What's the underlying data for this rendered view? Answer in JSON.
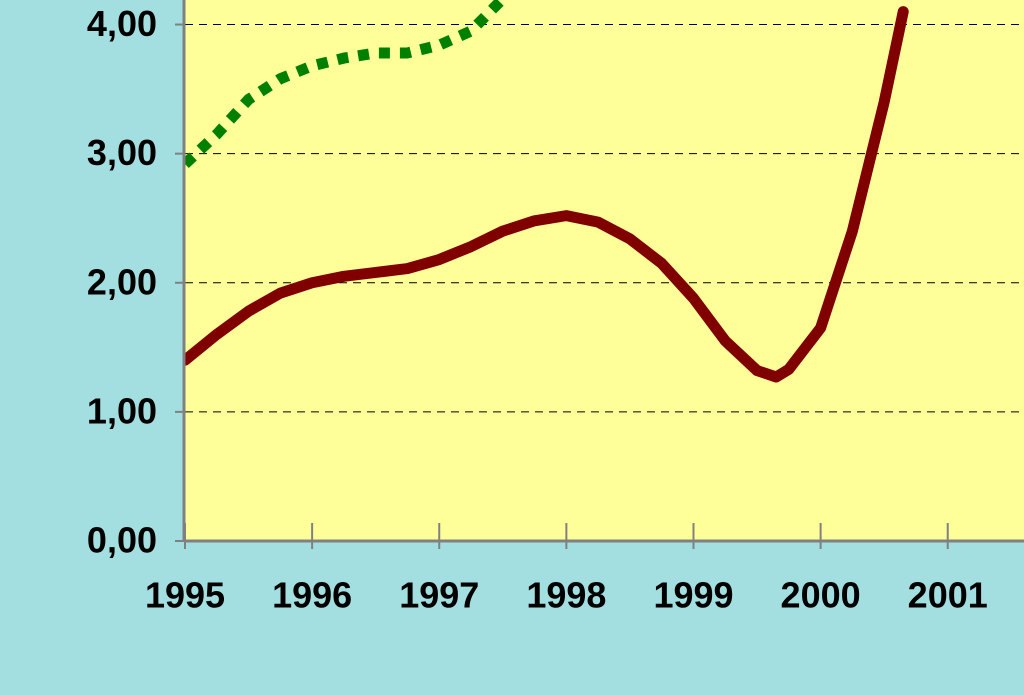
{
  "chart_data": {
    "type": "line",
    "x": [
      1995,
      1995.25,
      1995.5,
      1995.75,
      1996,
      1996.25,
      1996.5,
      1996.75,
      1997,
      1997.25,
      1997.5,
      1997.75,
      1998,
      1998.25,
      1998.5,
      1998.75,
      1999,
      1999.25,
      1999.5,
      1999.65,
      1999.75,
      2000,
      2000.25,
      2000.5,
      2000.65
    ],
    "series": [
      {
        "color": "#800000",
        "style": "solid",
        "values": [
          1.4,
          1.6,
          1.78,
          1.92,
          2.0,
          2.05,
          2.08,
          2.11,
          2.18,
          2.28,
          2.4,
          2.48,
          2.52,
          2.47,
          2.34,
          2.15,
          1.88,
          1.55,
          1.32,
          1.27,
          1.33,
          1.65,
          2.4,
          3.4,
          4.1
        ]
      },
      {
        "color": "#008000",
        "style": "dotted",
        "values": [
          2.92,
          3.15,
          3.42,
          3.58,
          3.68,
          3.74,
          3.78,
          3.78,
          3.84,
          3.95,
          4.2,
          null,
          null,
          null,
          null,
          null,
          null,
          null,
          null,
          null,
          null,
          null,
          null,
          null,
          null
        ]
      }
    ],
    "xlim": [
      1995,
      2001.6
    ],
    "ylim": [
      0,
      4.19
    ],
    "xticks": [
      1995,
      1996,
      1997,
      1998,
      1999,
      2000,
      2001
    ],
    "yticks": [
      {
        "value": 0,
        "label": "0,00"
      },
      {
        "value": 1,
        "label": "1,00"
      },
      {
        "value": 2,
        "label": "2,00"
      },
      {
        "value": 3,
        "label": "3,00"
      },
      {
        "value": 4,
        "label": "4,00"
      }
    ],
    "grid": true
  }
}
